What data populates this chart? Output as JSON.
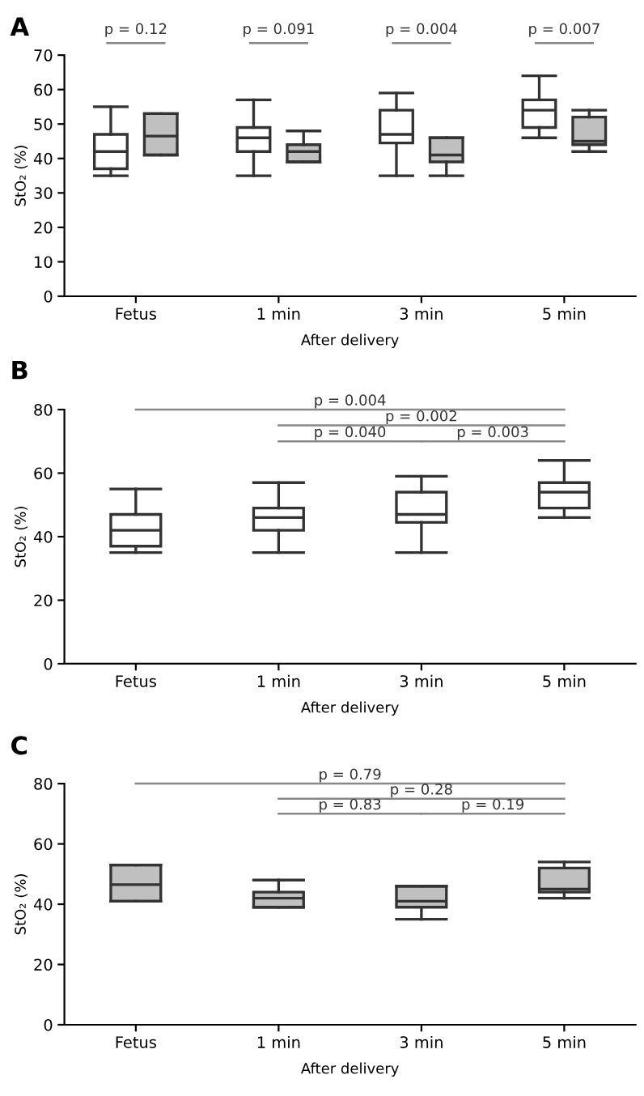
{
  "chart_data": [
    {
      "type": "box",
      "title": "A",
      "xlabel": "After delivery",
      "ylabel": "StO₂ (%)",
      "categories": [
        "Fetus",
        "1 min",
        "3 min",
        "5 min"
      ],
      "ylim": [
        0,
        70
      ],
      "yticks": [
        0,
        10,
        20,
        30,
        40,
        50,
        60,
        70
      ],
      "grid": false,
      "legend": false,
      "series": [
        {
          "color": "#ffffff",
          "boxes": [
            {
              "low": 35,
              "q1": 37,
              "median": 42,
              "q3": 47,
              "high": 55
            },
            {
              "low": 35,
              "q1": 42,
              "median": 46,
              "q3": 49,
              "high": 57
            },
            {
              "low": 35,
              "q1": 44.5,
              "median": 47,
              "q3": 54,
              "high": 59
            },
            {
              "low": 46,
              "q1": 49,
              "median": 54,
              "q3": 57,
              "high": 64
            }
          ]
        },
        {
          "color": "#c0c0c0",
          "boxes": [
            {
              "low": 41,
              "q1": 41,
              "median": 46.5,
              "q3": 53,
              "high": 53
            },
            {
              "low": 39,
              "q1": 39,
              "median": 42,
              "q3": 44,
              "high": 48
            },
            {
              "low": 35,
              "q1": 39,
              "median": 41,
              "q3": 46,
              "high": 46
            },
            {
              "low": 42,
              "q1": 44,
              "median": 45,
              "q3": 52,
              "high": 54
            }
          ]
        }
      ],
      "annotations": [
        "p = 0.12",
        "p = 0.091",
        "p = 0.004",
        "p = 0.007"
      ]
    },
    {
      "type": "box",
      "title": "B",
      "xlabel": "After delivery",
      "ylabel": "StO₂ (%)",
      "categories": [
        "Fetus",
        "1 min",
        "3 min",
        "5 min"
      ],
      "ylim": [
        0,
        80
      ],
      "yticks": [
        0,
        20,
        40,
        60,
        80
      ],
      "grid": false,
      "legend": false,
      "series": [
        {
          "color": "#ffffff",
          "boxes": [
            {
              "low": 35,
              "q1": 37,
              "median": 42,
              "q3": 47,
              "high": 55
            },
            {
              "low": 35,
              "q1": 42,
              "median": 46,
              "q3": 49,
              "high": 57
            },
            {
              "low": 35,
              "q1": 44.5,
              "median": 47,
              "q3": 54,
              "high": 59
            },
            {
              "low": 46,
              "q1": 49,
              "median": 54,
              "q3": 57,
              "high": 64
            }
          ]
        }
      ],
      "annotations": [
        "p = 0.004",
        "p = 0.002",
        "p = 0.040",
        "p = 0.003"
      ]
    },
    {
      "type": "box",
      "title": "C",
      "xlabel": "After delivery",
      "ylabel": "StO₂ (%)",
      "categories": [
        "Fetus",
        "1 min",
        "3 min",
        "5 min"
      ],
      "ylim": [
        0,
        80
      ],
      "yticks": [
        0,
        20,
        40,
        60,
        80
      ],
      "grid": false,
      "legend": false,
      "series": [
        {
          "color": "#c0c0c0",
          "boxes": [
            {
              "low": 41,
              "q1": 41,
              "median": 46.5,
              "q3": 53,
              "high": 53
            },
            {
              "low": 39,
              "q1": 39,
              "median": 42,
              "q3": 44,
              "high": 48
            },
            {
              "low": 35,
              "q1": 39,
              "median": 41,
              "q3": 46,
              "high": 46
            },
            {
              "low": 42,
              "q1": 44,
              "median": 45,
              "q3": 52,
              "high": 54
            }
          ]
        }
      ],
      "annotations": [
        "p = 0.79",
        "p = 0.28",
        "p = 0.83",
        "p = 0.19"
      ]
    }
  ]
}
